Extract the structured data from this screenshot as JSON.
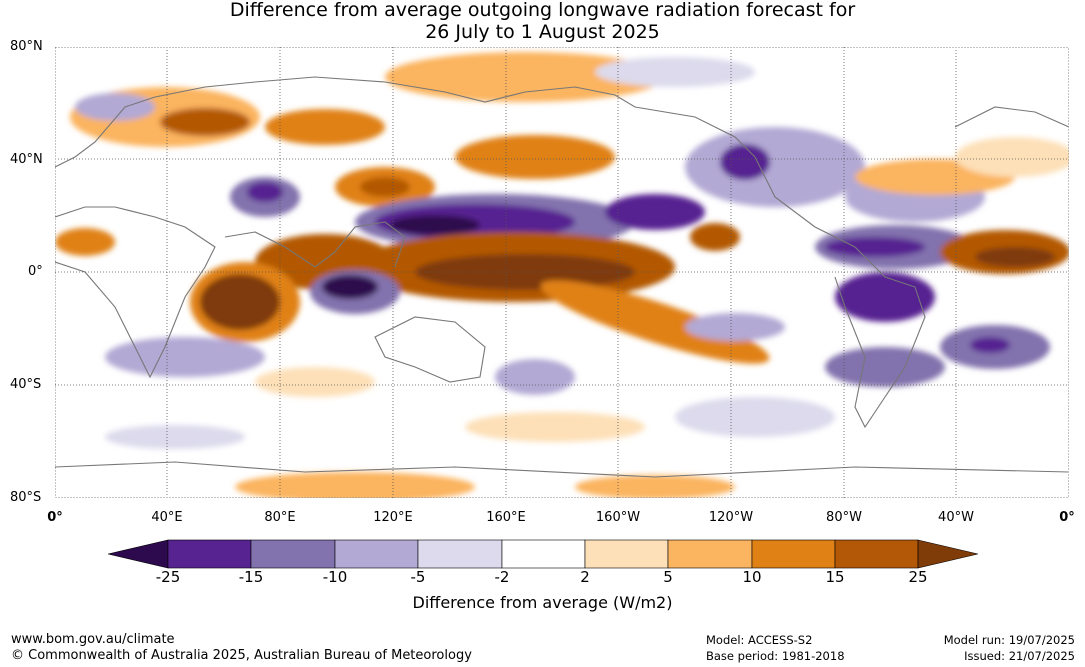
{
  "title_line1": "Difference from average outgoing longwave radiation forecast for",
  "title_line2": "26 July to 1 August 2025",
  "lat_labels": [
    "80°N",
    "40°N",
    "0°",
    "40°S",
    "80°S"
  ],
  "lon_labels": [
    "0°",
    "40°E",
    "80°E",
    "120°E",
    "160°E",
    "160°W",
    "120°W",
    "80°W",
    "40°W",
    "0°"
  ],
  "colorbar": {
    "ticks": [
      "-25",
      "-15",
      "-10",
      "-5",
      "-2",
      "2",
      "5",
      "10",
      "15",
      "25"
    ],
    "colors": [
      "#2d0a4e",
      "#572391",
      "#8272ad",
      "#b2a9d4",
      "#dcdaec",
      "#ffffff",
      "#fde0b8",
      "#fbb45f",
      "#e08116",
      "#b35806",
      "#7f3b08"
    ],
    "title": "Difference from average (W/m2)"
  },
  "footer": {
    "url": "www.bom.gov.au/climate",
    "copyright": "© Commonwealth of Australia 2025, Australian Bureau of Meteorology",
    "model": "Model: ACCESS-S2",
    "base_period": "Base period: 1981-2018",
    "model_run": "Model run: 19/07/2025",
    "issued": "Issued: 21/07/2025"
  }
}
